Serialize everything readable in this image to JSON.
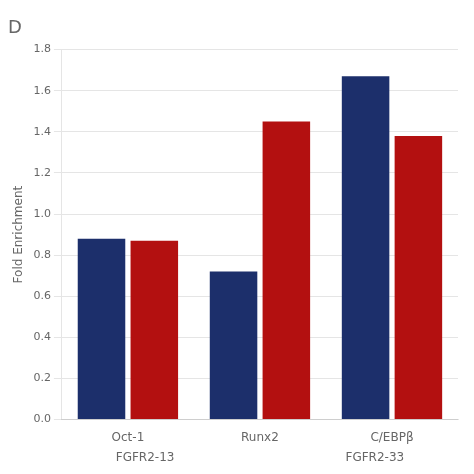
{
  "chart_data": {
    "type": "bar",
    "title": "D",
    "ylabel": "Fold Enrichment",
    "categories": [
      "Oct-1",
      "Runx2",
      "C/EBPβ"
    ],
    "series": [
      {
        "color": "#1c2f6b",
        "values": [
          0.88,
          0.72,
          1.67
        ]
      },
      {
        "color": "#b31010",
        "values": [
          0.87,
          1.45,
          1.38
        ]
      }
    ],
    "annotations": [
      "FGFR2-13",
      "FGFR2-33"
    ],
    "ylim": [
      0.0,
      1.8
    ],
    "yticks": [
      {
        "value": 0.0,
        "label": "0.0"
      },
      {
        "value": 0.2,
        "label": "0.2"
      },
      {
        "value": 0.4,
        "label": "0.4"
      },
      {
        "value": 0.6,
        "label": "0.6"
      },
      {
        "value": 0.8,
        "label": "0.8"
      },
      {
        "value": 1.0,
        "label": "1.0"
      },
      {
        "value": 1.2,
        "label": "1.2"
      },
      {
        "value": 1.4,
        "label": "1.4"
      },
      {
        "value": 1.6,
        "label": "1.6"
      },
      {
        "value": 1.8,
        "label": "1.8"
      }
    ],
    "grid": true
  }
}
